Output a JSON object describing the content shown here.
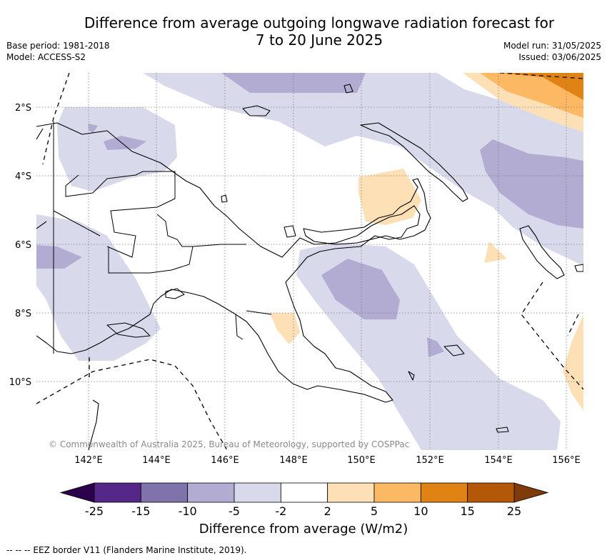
{
  "title_line1": "Difference from average outgoing longwave radiation forecast for",
  "title_line2": "7 to 20 June 2025",
  "base_period": "Base period: 1981-2018",
  "model": "Model: ACCESS-S2",
  "model_run": "Model run: 31/05/2025",
  "issued": "Issued: 03/06/2025",
  "lat_labels": [
    "2°S",
    "4°S",
    "6°S",
    "8°S",
    "10°S"
  ],
  "lon_labels": [
    "142°E",
    "144°E",
    "146°E",
    "148°E",
    "150°E",
    "152°E",
    "154°E",
    "156°E"
  ],
  "copyright": "© Commonwealth of Australia 2025, Bureau of Meteorology, supported by COSPPac",
  "colorbar": {
    "ticks": [
      "-25",
      "-15",
      "-10",
      "-5",
      "-2",
      "2",
      "5",
      "10",
      "15",
      "25"
    ],
    "colors": [
      "#542788",
      "#8073ac",
      "#b2abd2",
      "#d8daeb",
      "#ffffff",
      "#fee0b6",
      "#fdb863",
      "#e08214",
      "#b35806"
    ],
    "under_color": "#2d004b",
    "over_color": "#7f3b08",
    "label": "Difference from average (W/m2)"
  },
  "footer": "-- -- -- EEZ border V11 (Flanders Marine Institute, 2019)."
}
